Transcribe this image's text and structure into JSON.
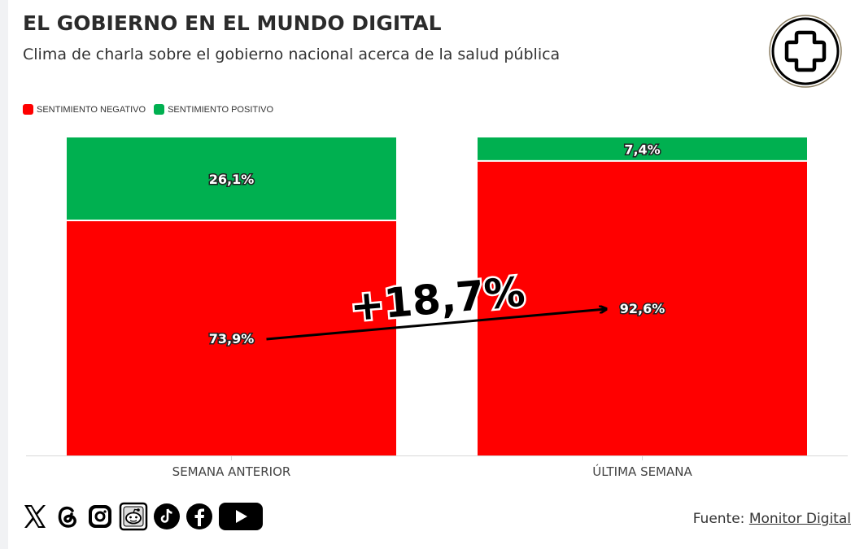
{
  "header": {
    "title": "EL GOBIERNO EN EL MUNDO DIGITAL",
    "subtitle": "Clima de charla sobre el gobierno nacional acerca de la salud pública",
    "logo_icon": "medical-cross-icon"
  },
  "colors": {
    "negative": "#ff0000",
    "positive": "#00b050"
  },
  "chart_data": {
    "type": "bar",
    "stacked": true,
    "categories": [
      "SEMANA ANTERIOR",
      "ÚLTIMA SEMANA"
    ],
    "series": [
      {
        "name": "SENTIMIENTO NEGATIVO",
        "values": [
          73.9,
          92.6
        ],
        "labels": [
          "73,9%",
          "92,6%"
        ],
        "color": "#ff0000"
      },
      {
        "name": "SENTIMIENTO POSITIVO",
        "values": [
          26.1,
          7.4
        ],
        "labels": [
          "26,1%",
          "7,4%"
        ],
        "color": "#00b050"
      }
    ],
    "ylim": [
      0,
      100
    ],
    "legend": [
      "SENTIMIENTO NEGATIVO",
      "SENTIMIENTO POSITIVO"
    ],
    "annotation": "+18,7%"
  },
  "footer": {
    "social_icons": [
      "x-icon",
      "threads-icon",
      "instagram-icon",
      "reddit-icon",
      "tiktok-icon",
      "facebook-icon",
      "youtube-icon"
    ],
    "source_prefix": "Fuente:",
    "source_link": "Monitor Digital"
  }
}
